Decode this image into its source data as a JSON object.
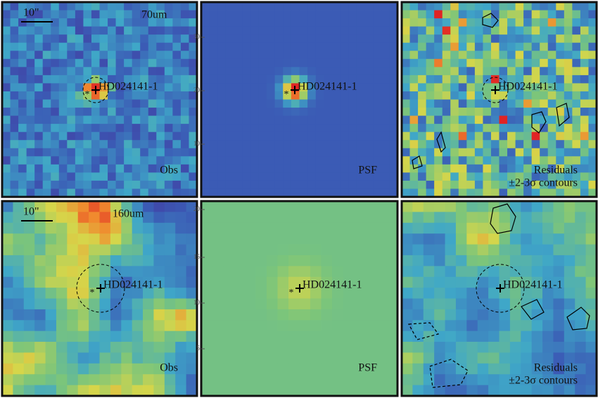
{
  "panels": [
    {
      "scale": "10\"",
      "band": "70um",
      "source": "HD024141-1",
      "label": "Obs"
    },
    {
      "source": "HD024141-1",
      "label": "PSF",
      "ticks": [
        "30",
        "20",
        "10"
      ]
    },
    {
      "source": "HD024141-1",
      "label": "Residuals",
      "note": "±2-3σ contours"
    },
    {
      "scale": "10\"",
      "band": "160um",
      "source": "HD024141-1",
      "label": "Obs"
    },
    {
      "source": "HD024141-1",
      "label": "PSF",
      "ticks": [
        "20",
        "15",
        "10",
        "5"
      ]
    },
    {
      "source": "HD024141-1",
      "label": "Residuals",
      "note": "±2-3σ contours"
    }
  ]
}
